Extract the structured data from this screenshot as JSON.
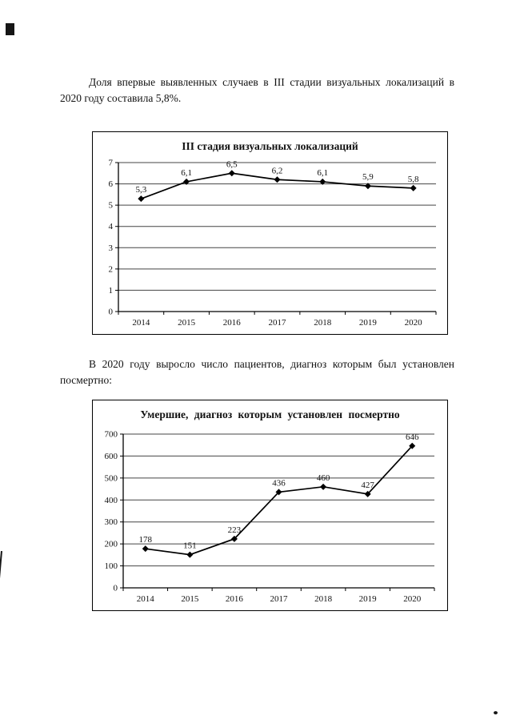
{
  "document": {
    "paragraph1": "Доля впервые выявленных случаев в III стадии визуальных локализаций в 2020 году составила 5,8%.",
    "paragraph2": "В 2020 году выросло число пациентов, диагноз которым был установлен посмертно:"
  },
  "chart_data": [
    {
      "id": "stage-iii-chart",
      "type": "line",
      "title": "III стадия визуальных локализаций",
      "categories": [
        "2014",
        "2015",
        "2016",
        "2017",
        "2018",
        "2019",
        "2020"
      ],
      "values": [
        5.3,
        6.1,
        6.5,
        6.2,
        6.1,
        5.9,
        5.8
      ],
      "point_labels": [
        "5,3",
        "6,1",
        "6,5",
        "6,2",
        "6,1",
        "5,9",
        "5,8"
      ],
      "xlabel": "",
      "ylabel": "",
      "ylim": [
        0,
        7
      ],
      "ytick_step": 1,
      "ytick_labels": [
        "0",
        "1",
        "2",
        "3",
        "4",
        "5",
        "6",
        "7"
      ],
      "grid": true,
      "legend": "none",
      "line_color": "#000000",
      "marker": "diamond"
    },
    {
      "id": "posthumous-chart",
      "type": "line",
      "title": "Умершие, диагноз которым установлен посмертно",
      "categories": [
        "2014",
        "2015",
        "2016",
        "2017",
        "2018",
        "2019",
        "2020"
      ],
      "values": [
        178,
        151,
        223,
        436,
        460,
        427,
        646
      ],
      "point_labels": [
        "178",
        "151",
        "223",
        "436",
        "460",
        "427",
        "646"
      ],
      "xlabel": "",
      "ylabel": "",
      "ylim": [
        0,
        700
      ],
      "ytick_step": 100,
      "ytick_labels": [
        "0",
        "100",
        "200",
        "300",
        "400",
        "500",
        "600",
        "700"
      ],
      "grid": true,
      "legend": "none",
      "line_color": "#000000",
      "marker": "diamond"
    }
  ]
}
